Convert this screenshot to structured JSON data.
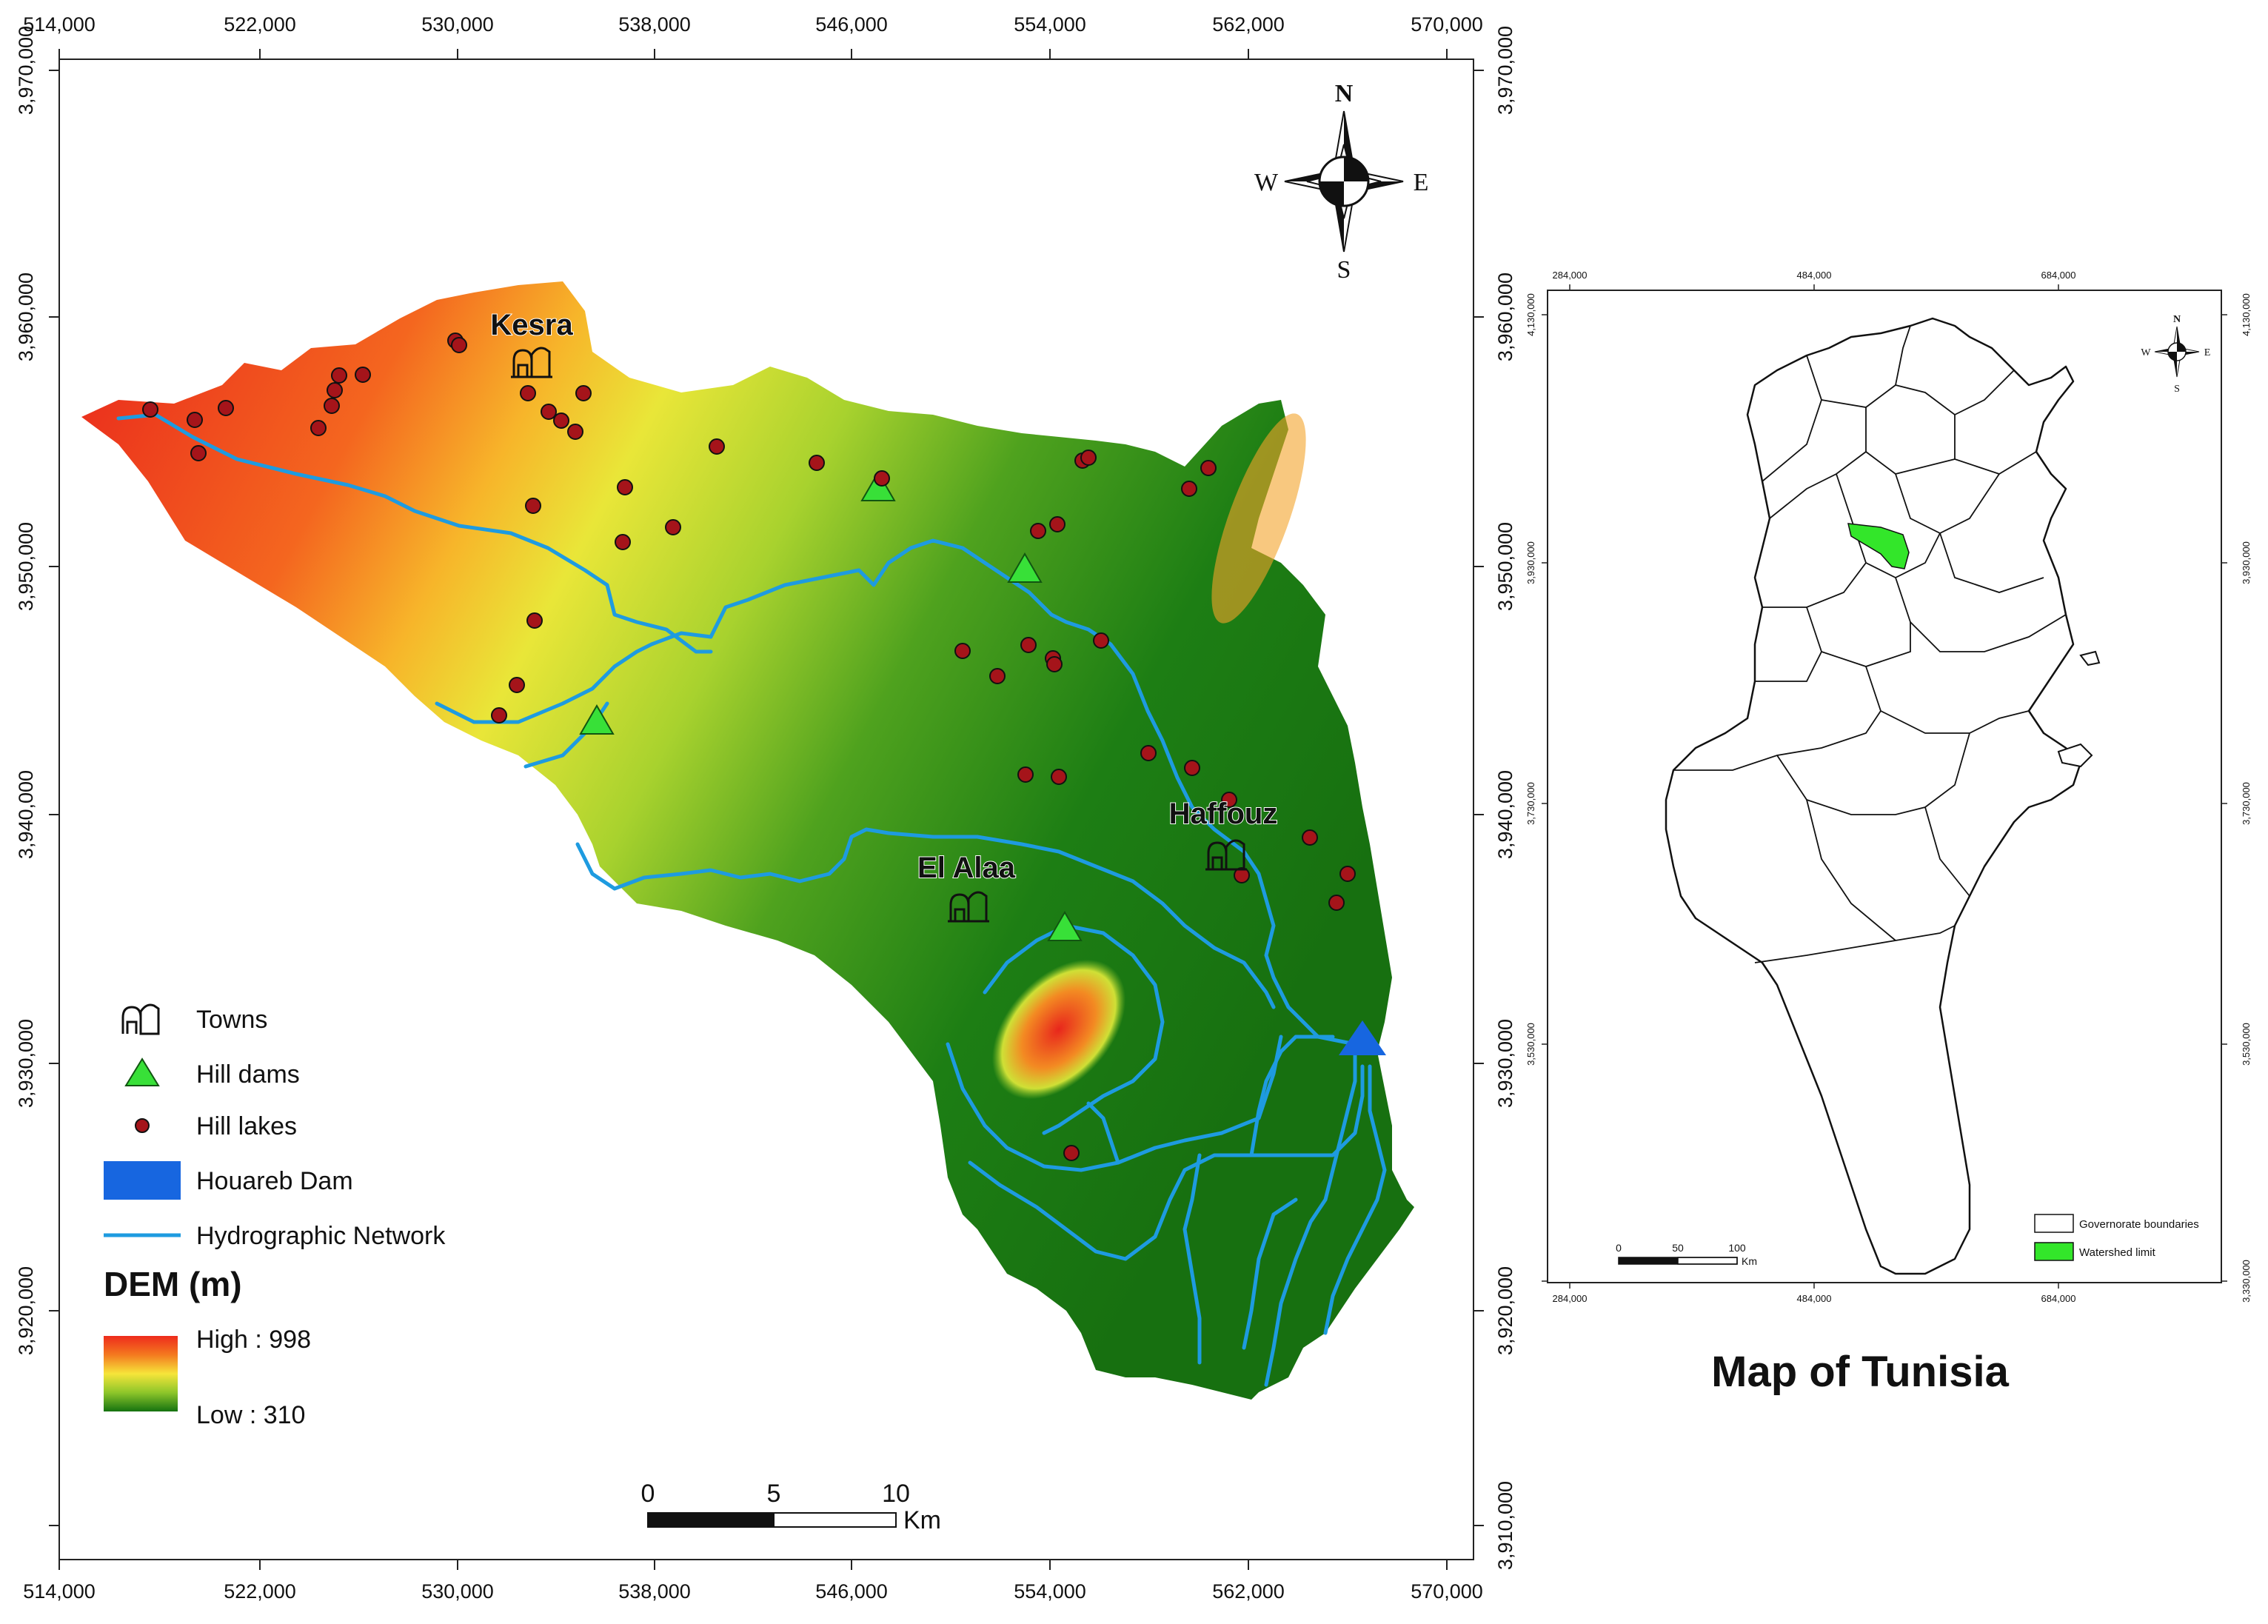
{
  "main_map": {
    "x_ticks": [
      "514,000",
      "522,000",
      "530,000",
      "538,000",
      "546,000",
      "554,000",
      "562,000",
      "570,000"
    ],
    "y_ticks": [
      "3,970,000",
      "3,960,000",
      "3,950,000",
      "3,940,000",
      "3,930,000",
      "3,920,000"
    ],
    "y_right_ticks": [
      "3,970,000",
      "3,960,000",
      "3,950,000",
      "3,940,000",
      "3,930,000",
      "3,920,000",
      "3,910,000"
    ],
    "towns": [
      "Kesra",
      "El Alaa",
      "Haffouz"
    ],
    "compass": {
      "n": "N",
      "s": "S",
      "e": "E",
      "w": "W"
    },
    "legend": {
      "towns": "Towns",
      "hill_dams": "Hill dams",
      "hill_lakes": "Hill lakes",
      "houareb_dam": "Houareb Dam",
      "hydro": "Hydrographic Network",
      "dem_title": "DEM (m)",
      "high": "High : 998",
      "low": "Low : 310"
    },
    "scale": {
      "t0": "0",
      "t1": "5",
      "t2": "10",
      "unit": "Km"
    },
    "colors": {
      "high": "#ef2a1c",
      "mid": "#f5e838",
      "low": "#1a7a12",
      "river": "#1e9be0",
      "dam_tri": "#38e038",
      "houareb": "#1766e0",
      "lake": "#a5141a"
    }
  },
  "inset": {
    "x_ticks": [
      "284,000",
      "484,000",
      "684,000"
    ],
    "y_ticks": [
      "4,130,000",
      "3,930,000",
      "3,730,000",
      "3,530,000",
      "3,330,000"
    ],
    "compass": {
      "n": "N",
      "s": "S",
      "e": "E",
      "w": "W"
    },
    "legend": {
      "gov": "Governorate boundaries",
      "watershed": "Watershed limit"
    },
    "scale": {
      "t0": "0",
      "t1": "50",
      "t2": "100",
      "unit": "Km"
    },
    "title": "Map of Tunisia"
  }
}
